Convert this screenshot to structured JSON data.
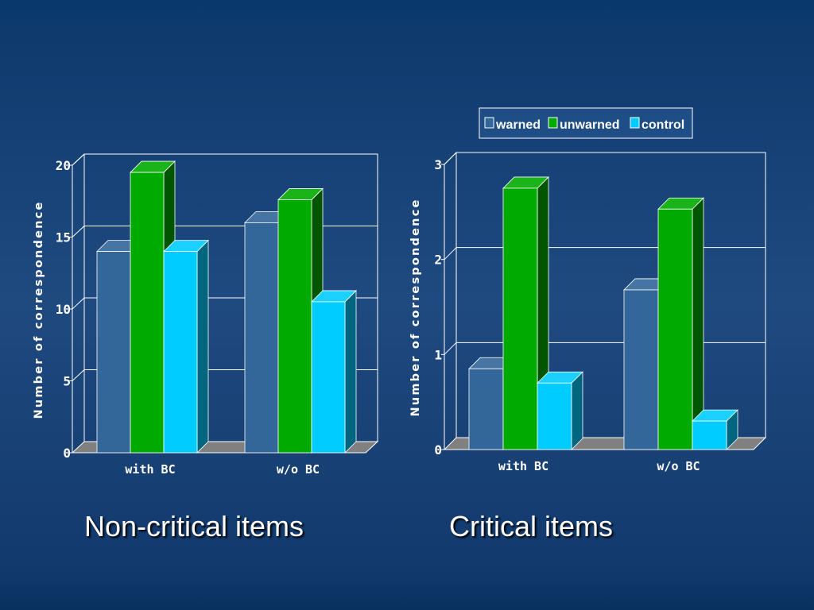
{
  "chart_data": [
    {
      "type": "bar",
      "caption": "Non-critical items",
      "ylabel": "Number of correspondence",
      "categories": [
        "with BC",
        "w/o BC"
      ],
      "yticks": [
        "0",
        "5",
        "10",
        "15",
        "20"
      ],
      "ylim": [
        0,
        20
      ],
      "series": [
        {
          "name": "warned",
          "values": [
            14.0,
            16.0
          ]
        },
        {
          "name": "unwarned",
          "values": [
            19.5,
            17.6
          ]
        },
        {
          "name": "control",
          "values": [
            14.0,
            10.5
          ]
        }
      ]
    },
    {
      "type": "bar",
      "caption": "Critical items",
      "ylabel": "Number of correspondence",
      "categories": [
        "with BC",
        "w/o BC"
      ],
      "yticks": [
        "0",
        "1",
        "2",
        "3"
      ],
      "ylim": [
        0,
        3
      ],
      "series": [
        {
          "name": "warned",
          "values": [
            0.85,
            1.68
          ]
        },
        {
          "name": "unwarned",
          "values": [
            2.75,
            2.53
          ]
        },
        {
          "name": "control",
          "values": [
            0.7,
            0.3
          ]
        }
      ]
    }
  ],
  "legend": [
    {
      "name": "warned",
      "color": "#336699"
    },
    {
      "name": "unwarned",
      "color": "#00aa00"
    },
    {
      "name": "control",
      "color": "#00ccff"
    }
  ],
  "colors": {
    "background": "#1c4275",
    "floor": "#808080",
    "gridline": "#ffffff"
  }
}
